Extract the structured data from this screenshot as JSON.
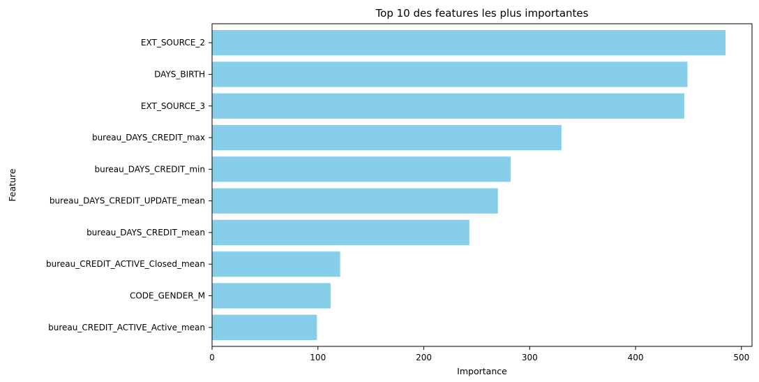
{
  "chart_data": {
    "type": "bar",
    "orientation": "horizontal",
    "title": "Top 10 des features les plus importantes",
    "xlabel": "Importance",
    "ylabel": "Feature",
    "categories": [
      "EXT_SOURCE_2",
      "DAYS_BIRTH",
      "EXT_SOURCE_3",
      "bureau_DAYS_CREDIT_max",
      "bureau_DAYS_CREDIT_min",
      "bureau_DAYS_CREDIT_UPDATE_mean",
      "bureau_DAYS_CREDIT_mean",
      "bureau_CREDIT_ACTIVE_Closed_mean",
      "CODE_GENDER_M",
      "bureau_CREDIT_ACTIVE_Active_mean"
    ],
    "values": [
      485,
      449,
      446,
      330,
      282,
      270,
      243,
      121,
      112,
      99
    ],
    "xlim": [
      0,
      510
    ],
    "xticks": [
      0,
      100,
      200,
      300,
      400,
      500
    ],
    "bar_color": "#87ceeb",
    "grid": false
  }
}
